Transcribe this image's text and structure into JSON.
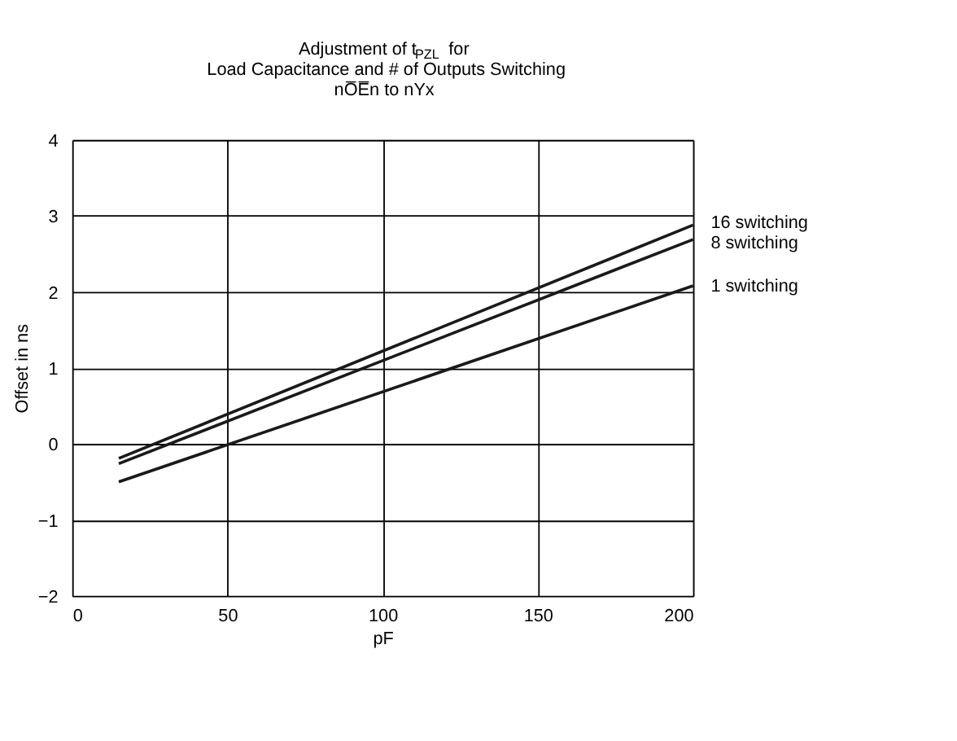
{
  "chart_data": {
    "type": "line",
    "title": [
      "Adjustment of t$_{PZL}$ for",
      "Load Capacitance and # of Outputs Switching",
      "nO̅E̅n to nYx"
    ],
    "xlabel": "pF",
    "ylabel": "Offset in ns",
    "x": [
      15,
      200
    ],
    "series": [
      {
        "name": "16 switching",
        "color": "#1a1a1a",
        "values": [
          -0.19,
          2.88
        ]
      },
      {
        "name": "8 switching",
        "color": "#1a1a1a",
        "values": [
          -0.26,
          2.69
        ]
      },
      {
        "name": "1 switching",
        "color": "#1a1a1a",
        "values": [
          -0.5,
          2.08
        ]
      }
    ],
    "xlim": [
      0,
      200
    ],
    "xticks": [
      0,
      50,
      100,
      150,
      200
    ],
    "ylim": [
      -2,
      4
    ],
    "yticks": [
      {
        "value": -2,
        "label": "−2"
      },
      {
        "value": -1,
        "label": "−1"
      },
      0,
      1,
      2,
      3,
      4
    ],
    "grid": true,
    "legend": false,
    "marker": "none",
    "line_style": "solid"
  }
}
